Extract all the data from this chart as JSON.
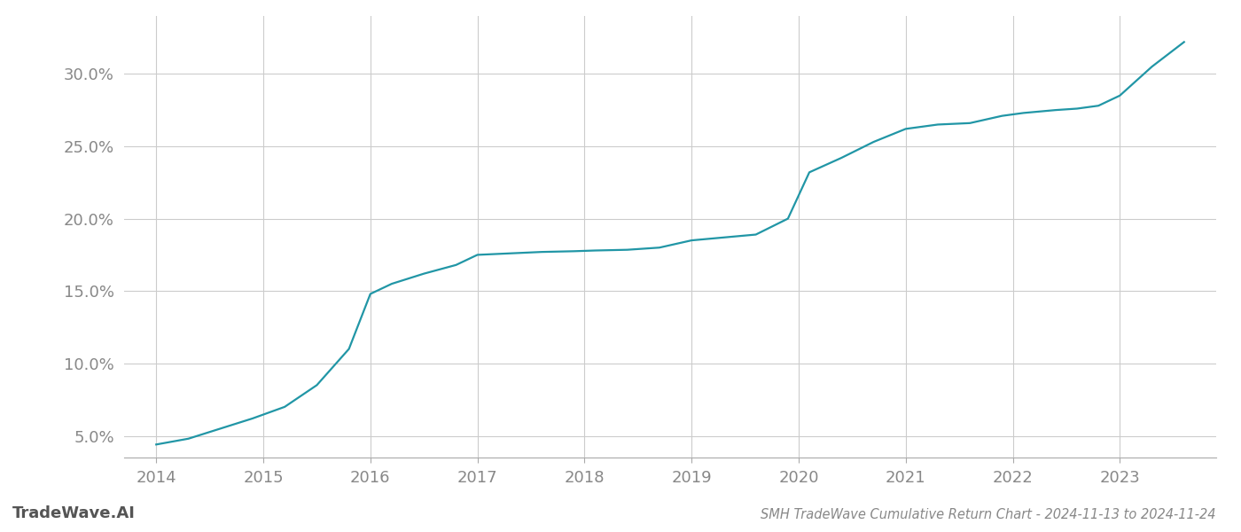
{
  "x_years": [
    2014.0,
    2014.3,
    2014.6,
    2014.9,
    2015.2,
    2015.5,
    2015.8,
    2016.0,
    2016.2,
    2016.5,
    2016.8,
    2017.0,
    2017.3,
    2017.6,
    2017.9,
    2018.1,
    2018.4,
    2018.7,
    2019.0,
    2019.3,
    2019.6,
    2019.9,
    2020.1,
    2020.4,
    2020.7,
    2021.0,
    2021.3,
    2021.6,
    2021.9,
    2022.1,
    2022.4,
    2022.6,
    2022.8,
    2023.0,
    2023.3,
    2023.6
  ],
  "y_values": [
    4.4,
    4.8,
    5.5,
    6.2,
    7.0,
    8.5,
    11.0,
    14.8,
    15.5,
    16.2,
    16.8,
    17.5,
    17.6,
    17.7,
    17.75,
    17.8,
    17.85,
    18.0,
    18.5,
    18.7,
    18.9,
    20.0,
    23.2,
    24.2,
    25.3,
    26.2,
    26.5,
    26.6,
    27.1,
    27.3,
    27.5,
    27.6,
    27.8,
    28.5,
    30.5,
    32.2
  ],
  "line_color": "#2196a6",
  "line_width": 1.6,
  "background_color": "#ffffff",
  "grid_color": "#cccccc",
  "title": "SMH TradeWave Cumulative Return Chart - 2024-11-13 to 2024-11-24",
  "watermark": "TradeWave.AI",
  "xlim": [
    2013.7,
    2023.9
  ],
  "ylim": [
    3.5,
    34.0
  ],
  "xticks": [
    2014,
    2015,
    2016,
    2017,
    2018,
    2019,
    2020,
    2021,
    2022,
    2023
  ],
  "yticks": [
    5.0,
    10.0,
    15.0,
    20.0,
    25.0,
    30.0
  ],
  "title_fontsize": 10.5,
  "tick_fontsize": 13,
  "watermark_fontsize": 13
}
